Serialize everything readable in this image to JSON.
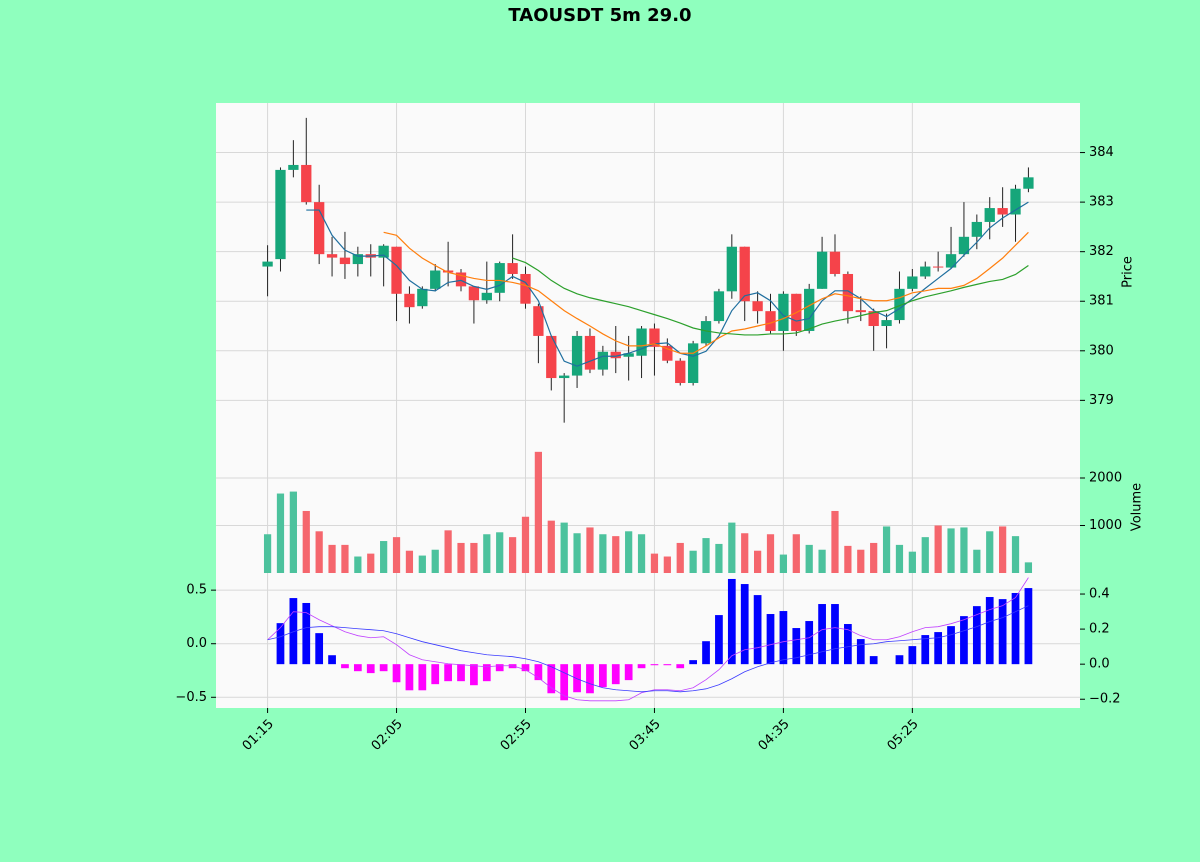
{
  "chart_data": [
    {
      "type": "candlestick",
      "title": "TAOUSDT 5m 29.0",
      "ylabel": "Price",
      "open": [
        381.7,
        381.85,
        383.65,
        383.75,
        383.0,
        381.95,
        381.88,
        381.75,
        381.95,
        381.88,
        382.1,
        381.15,
        380.9,
        381.25,
        381.62,
        381.58,
        381.3,
        381.02,
        381.17,
        381.77,
        381.55,
        380.9,
        380.3,
        379.45,
        379.5,
        380.3,
        379.62,
        379.98,
        379.88,
        379.9,
        380.45,
        380.1,
        379.8,
        379.35,
        380.15,
        380.6,
        381.2,
        382.1,
        381.0,
        380.8,
        380.4,
        381.15,
        380.4,
        381.25,
        382.0,
        381.55,
        380.82,
        380.8,
        380.5,
        380.62,
        381.25,
        381.5,
        381.7,
        381.68,
        381.95,
        382.3,
        382.6,
        382.88,
        382.75,
        383.27
      ],
      "high": [
        382.13,
        383.7,
        384.25,
        384.7,
        383.35,
        382.3,
        382.4,
        382.1,
        382.15,
        382.15,
        382.1,
        381.3,
        381.3,
        381.75,
        382.2,
        381.65,
        381.3,
        381.8,
        381.8,
        382.35,
        381.7,
        380.95,
        380.3,
        379.55,
        380.4,
        380.45,
        380.1,
        380.5,
        380.3,
        380.5,
        380.55,
        380.25,
        379.85,
        380.2,
        380.7,
        381.25,
        382.35,
        382.1,
        381.2,
        381.15,
        381.2,
        381.15,
        381.35,
        382.3,
        382.35,
        381.6,
        381.1,
        380.85,
        380.75,
        381.6,
        381.65,
        381.8,
        382.0,
        382.5,
        383.0,
        382.75,
        383.1,
        383.3,
        383.35,
        383.7
      ],
      "low": [
        381.1,
        381.6,
        383.5,
        382.95,
        381.75,
        381.5,
        381.45,
        381.5,
        381.5,
        381.3,
        380.6,
        380.55,
        380.85,
        381.2,
        381.3,
        381.2,
        380.55,
        380.95,
        381.0,
        381.45,
        380.85,
        379.75,
        379.2,
        378.55,
        379.25,
        379.55,
        379.5,
        379.55,
        379.4,
        379.45,
        379.5,
        379.75,
        379.3,
        379.3,
        380.1,
        380.55,
        381.05,
        380.6,
        380.55,
        380.35,
        380.0,
        380.3,
        380.35,
        381.25,
        381.5,
        380.55,
        380.6,
        380.0,
        380.05,
        380.55,
        381.2,
        381.45,
        381.6,
        381.65,
        381.9,
        382.05,
        382.25,
        382.5,
        382.2,
        383.2
      ],
      "close": [
        381.8,
        383.65,
        383.75,
        383.0,
        381.95,
        381.88,
        381.75,
        381.95,
        381.88,
        382.12,
        381.15,
        380.88,
        381.25,
        381.62,
        381.58,
        381.3,
        381.02,
        381.17,
        381.77,
        381.55,
        380.95,
        380.3,
        379.45,
        379.5,
        380.3,
        379.62,
        379.98,
        379.85,
        379.95,
        380.45,
        380.08,
        379.8,
        379.35,
        380.15,
        380.6,
        381.2,
        382.1,
        381.0,
        380.8,
        380.4,
        381.15,
        380.4,
        381.25,
        382.0,
        381.55,
        380.8,
        380.78,
        380.5,
        380.62,
        381.25,
        381.5,
        381.7,
        381.68,
        381.95,
        382.3,
        382.6,
        382.88,
        382.75,
        383.27,
        383.5
      ],
      "up_color": "#16a67a",
      "down_color": "#f5434a",
      "series": [
        {
          "color": "#1f6f9f",
          "values": [
            null,
            null,
            null,
            382.84,
            382.84,
            382.33,
            382.03,
            381.91,
            381.91,
            381.93,
            381.72,
            381.42,
            381.24,
            381.21,
            381.38,
            381.42,
            381.3,
            381.24,
            381.32,
            381.5,
            381.38,
            381.01,
            380.3,
            379.79,
            379.69,
            379.79,
            379.89,
            379.89,
            379.95,
            380.04,
            380.14,
            380.16,
            379.95,
            379.89,
            379.99,
            380.3,
            380.81,
            381.11,
            381.17,
            381.01,
            380.71,
            380.6,
            380.65,
            381.01,
            381.21,
            381.21,
            381.05,
            380.81,
            380.69,
            380.85,
            381.05,
            381.26,
            381.46,
            381.66,
            381.93,
            382.19,
            382.48,
            382.68,
            382.84,
            383.0
          ]
        },
        {
          "color": "#ff7f0e",
          "values": [
            null,
            null,
            null,
            null,
            null,
            null,
            null,
            null,
            null,
            382.39,
            382.33,
            382.07,
            381.87,
            381.72,
            381.58,
            381.52,
            381.46,
            381.42,
            381.42,
            381.38,
            381.32,
            381.21,
            381.01,
            380.81,
            380.65,
            380.5,
            380.34,
            380.2,
            380.1,
            380.1,
            380.14,
            380.04,
            379.95,
            379.95,
            380.1,
            380.26,
            380.4,
            380.44,
            380.5,
            380.56,
            380.65,
            380.77,
            380.91,
            381.05,
            381.15,
            381.11,
            381.05,
            381.01,
            381.01,
            381.07,
            381.17,
            381.21,
            381.26,
            381.26,
            381.32,
            381.46,
            381.66,
            381.87,
            382.13,
            382.39
          ]
        },
        {
          "color": "#2ca02c",
          "values": [
            null,
            null,
            null,
            null,
            null,
            null,
            null,
            null,
            null,
            null,
            null,
            null,
            null,
            null,
            null,
            null,
            null,
            null,
            null,
            381.87,
            381.78,
            381.62,
            381.42,
            381.26,
            381.15,
            381.07,
            381.01,
            380.95,
            380.89,
            380.81,
            380.73,
            380.65,
            380.56,
            380.46,
            380.4,
            380.36,
            380.34,
            380.32,
            380.32,
            380.34,
            380.34,
            380.36,
            380.44,
            380.54,
            380.6,
            380.65,
            380.71,
            380.77,
            380.81,
            380.91,
            381.01,
            381.09,
            381.15,
            381.21,
            381.28,
            381.34,
            381.4,
            381.44,
            381.54,
            381.72
          ]
        }
      ],
      "ylim": [
        378.2,
        385.0
      ],
      "yticks": [
        379,
        380,
        381,
        382,
        383,
        384
      ],
      "grid": true
    },
    {
      "type": "bar",
      "ylabel": "Volume",
      "values": [
        816,
        1673,
        1714,
        1306,
        878,
        592,
        592,
        347,
        408,
        673,
        755,
        469,
        367,
        490,
        898,
        633,
        633,
        816,
        857,
        755,
        1184,
        2551,
        1102,
        1061,
        837,
        959,
        816,
        776,
        878,
        816,
        408,
        347,
        633,
        469,
        735,
        612,
        1061,
        837,
        469,
        816,
        388,
        816,
        592,
        490,
        1306,
        571,
        490,
        633,
        980,
        592,
        449,
        755,
        1000,
        939,
        959,
        490,
        878,
        980,
        776,
        224
      ],
      "up_color": "#4cc29d",
      "down_color": "#f5666d",
      "ylim": [
        0,
        2800
      ],
      "yticks": [
        1000,
        2000
      ],
      "grid": true
    },
    {
      "type": "macd",
      "series": [
        {
          "type": "bar",
          "axis": "y2",
          "color": "#0000ff",
          "negative_color": "#ff00ff",
          "values": [
            0,
            0.234,
            0.377,
            0.349,
            0.177,
            0.051,
            -0.023,
            -0.04,
            -0.051,
            -0.04,
            -0.103,
            -0.149,
            -0.149,
            -0.114,
            -0.097,
            -0.097,
            -0.12,
            -0.097,
            -0.04,
            -0.023,
            -0.04,
            -0.091,
            -0.166,
            -0.206,
            -0.16,
            -0.166,
            -0.131,
            -0.114,
            -0.091,
            -0.023,
            -0.006,
            -0.006,
            -0.023,
            0.023,
            0.131,
            0.28,
            0.486,
            0.457,
            0.394,
            0.286,
            0.303,
            0.206,
            0.246,
            0.343,
            0.343,
            0.229,
            0.143,
            0.046,
            0,
            0.051,
            0.103,
            0.166,
            0.183,
            0.217,
            0.274,
            0.331,
            0.383,
            0.371,
            0.406,
            0.434
          ]
        },
        {
          "type": "line",
          "color": "#c040ff",
          "values": [
            0.037,
            0.15,
            0.299,
            0.29,
            0.224,
            0.168,
            0.112,
            0.075,
            0.056,
            0.065,
            -0.009,
            -0.103,
            -0.15,
            -0.168,
            -0.187,
            -0.196,
            -0.206,
            -0.215,
            -0.206,
            -0.206,
            -0.243,
            -0.318,
            -0.411,
            -0.486,
            -0.523,
            -0.533,
            -0.533,
            -0.533,
            -0.523,
            -0.458,
            -0.43,
            -0.43,
            -0.439,
            -0.411,
            -0.336,
            -0.243,
            -0.112,
            -0.056,
            -0.037,
            -0.009,
            0.019,
            0.037,
            0.056,
            0.131,
            0.15,
            0.131,
            0.075,
            0.037,
            0.037,
            0.065,
            0.112,
            0.15,
            0.159,
            0.187,
            0.224,
            0.271,
            0.318,
            0.355,
            0.43,
            0.617
          ]
        },
        {
          "type": "line",
          "color": "#3a3aff",
          "values": [
            0.037,
            0.065,
            0.112,
            0.15,
            0.159,
            0.159,
            0.15,
            0.14,
            0.131,
            0.121,
            0.093,
            0.056,
            0.019,
            -0.009,
            -0.037,
            -0.065,
            -0.084,
            -0.103,
            -0.112,
            -0.121,
            -0.14,
            -0.168,
            -0.215,
            -0.271,
            -0.327,
            -0.374,
            -0.411,
            -0.43,
            -0.439,
            -0.449,
            -0.439,
            -0.439,
            -0.449,
            -0.439,
            -0.421,
            -0.383,
            -0.327,
            -0.262,
            -0.215,
            -0.178,
            -0.15,
            -0.131,
            -0.103,
            -0.075,
            -0.047,
            -0.028,
            -0.009,
            0.0,
            0.019,
            0.028,
            0.037,
            0.047,
            0.056,
            0.084,
            0.121,
            0.159,
            0.206,
            0.243,
            0.299,
            0.355
          ]
        }
      ],
      "ylim": [
        -0.6,
        0.66
      ],
      "yticks": [
        {
          "value": -0.5,
          "label": "−0.5"
        },
        {
          "value": 0,
          "label": "0.0"
        },
        0.5
      ],
      "y2lim": [
        -0.25,
        0.52
      ],
      "y2ticks": [
        {
          "value": -0.2,
          "label": "−0.2"
        },
        {
          "value": 0,
          "label": "0.0"
        },
        0.2,
        0.4
      ],
      "xlim": [
        -4,
        63
      ],
      "xticks": [
        {
          "value": 0,
          "label": "01:15"
        },
        {
          "value": 10,
          "label": "02:05"
        },
        {
          "value": 20,
          "label": "02:55"
        },
        {
          "value": 30,
          "label": "03:45"
        },
        {
          "value": 40,
          "label": "04:35"
        },
        {
          "value": 50,
          "label": "05:25"
        }
      ],
      "grid": true
    }
  ]
}
